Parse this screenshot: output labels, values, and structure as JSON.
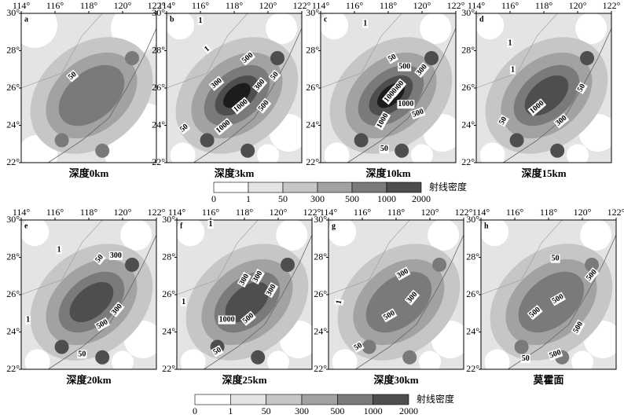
{
  "lon_ticks": [
    "114°",
    "116°",
    "118°",
    "120°",
    "122°"
  ],
  "lat_ticks": [
    "30°",
    "28°",
    "26°",
    "24°",
    "22°"
  ],
  "panels": [
    {
      "letter": "a",
      "caption": "深度0km",
      "contour_labels": [
        "50"
      ]
    },
    {
      "letter": "b",
      "caption": "深度3km",
      "contour_labels": [
        "1",
        "1",
        "500",
        "300",
        "300",
        "50",
        "1000",
        "50",
        "1000",
        "500"
      ]
    },
    {
      "letter": "c",
      "caption": "深度10km",
      "contour_labels": [
        "1",
        "50",
        "500",
        "300",
        "2000",
        "1000",
        "1000",
        "500",
        "1000",
        "50"
      ]
    },
    {
      "letter": "d",
      "caption": "深度15km",
      "contour_labels": [
        "1",
        "1",
        "50",
        "1000",
        "50",
        "300"
      ]
    },
    {
      "letter": "e",
      "caption": "深度20km",
      "contour_labels": [
        "1",
        "50",
        "300",
        "1",
        "300",
        "500",
        "50"
      ]
    },
    {
      "letter": "f",
      "caption": "深度25km",
      "contour_labels": [
        "1",
        "1",
        "300",
        "300",
        "300",
        "1000",
        "500",
        "50"
      ]
    },
    {
      "letter": "g",
      "caption": "深度30km",
      "contour_labels": [
        "1",
        "300",
        "300",
        "500",
        "50"
      ]
    },
    {
      "letter": "h",
      "caption": "莫霍面",
      "contour_labels": [
        "50",
        "500",
        "500",
        "500",
        "500",
        "50",
        "500"
      ]
    }
  ],
  "colorbars": [
    {
      "levels": [
        "0",
        "1",
        "50",
        "300",
        "500",
        "1000",
        "2000"
      ],
      "title": "射线密度"
    },
    {
      "levels": [
        "0",
        "1",
        "50",
        "300",
        "500",
        "1000",
        "2000"
      ],
      "title": "射线密度"
    }
  ]
}
